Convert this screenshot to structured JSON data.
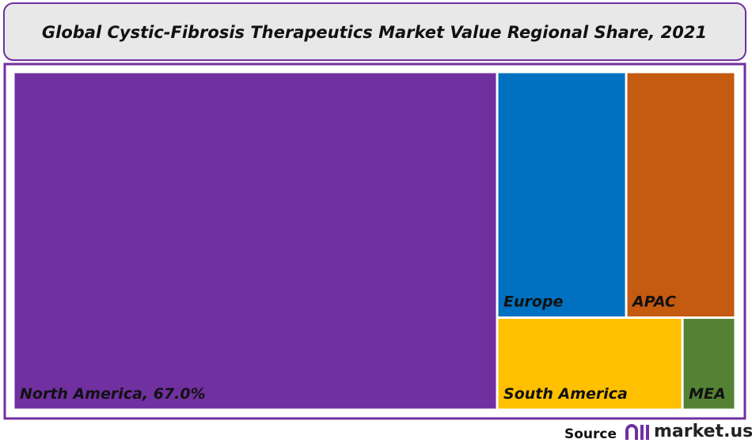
{
  "chart_data": {
    "type": "treemap",
    "title": "Global Cystic-Fibrosis Therapeutics Market Value Regional Share, 2021",
    "categories": [
      "North America, 67.0%",
      "Europe",
      "APAC",
      "South America",
      "MEA"
    ],
    "values": [
      67.0,
      13.0,
      11.0,
      7.0,
      2.0
    ],
    "colors": [
      "#7030a0",
      "#0070c0",
      "#c55a11",
      "#ffc000",
      "#548235"
    ],
    "source": "Source",
    "logo_text": "market.us"
  }
}
